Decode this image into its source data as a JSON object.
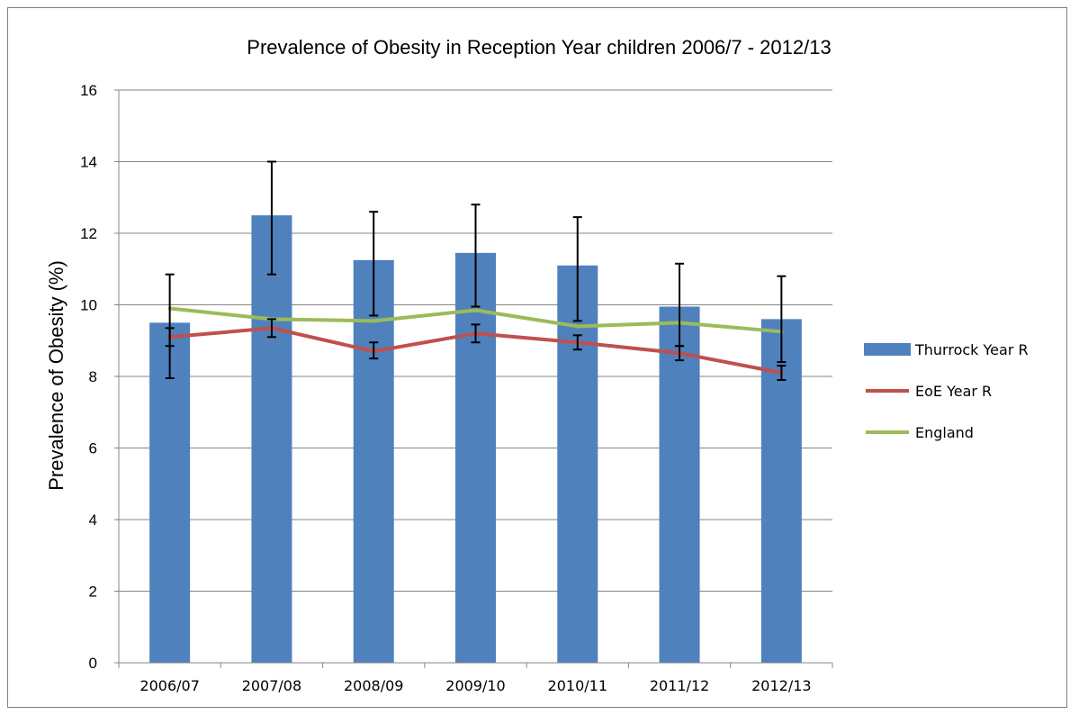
{
  "chart_data": {
    "type": "bar",
    "title": "Prevalence of Obesity in Reception Year children 2006/7 - 2012/13",
    "xlabel": "",
    "ylabel": "Prevalence of Obesity (%)",
    "ylim": [
      0,
      16
    ],
    "yticks": [
      0,
      2,
      4,
      6,
      8,
      10,
      12,
      14,
      16
    ],
    "grid": true,
    "legend_position": "right",
    "categories": [
      "2006/07",
      "2007/08",
      "2008/09",
      "2009/10",
      "2010/11",
      "2011/12",
      "2012/13"
    ],
    "series": [
      {
        "name": "Thurrock Year R",
        "kind": "bar",
        "color": "#4f81bd",
        "values": [
          9.5,
          12.5,
          11.25,
          11.45,
          11.1,
          9.95,
          9.6
        ],
        "error_low": [
          7.95,
          10.85,
          9.7,
          9.95,
          9.55,
          8.85,
          8.4
        ],
        "error_high": [
          10.85,
          14.0,
          12.6,
          12.8,
          12.45,
          11.15,
          10.8
        ]
      },
      {
        "name": "EoE Year R",
        "kind": "line",
        "color": "#c0504d",
        "values": [
          9.1,
          9.35,
          8.7,
          9.2,
          8.95,
          8.65,
          8.1
        ],
        "error_low": [
          8.85,
          9.1,
          8.5,
          8.95,
          8.75,
          8.45,
          7.9
        ],
        "error_high": [
          9.35,
          9.6,
          8.95,
          9.45,
          9.15,
          8.85,
          8.3
        ]
      },
      {
        "name": "England",
        "kind": "line",
        "color": "#9bbb59",
        "values": [
          9.9,
          9.6,
          9.55,
          9.85,
          9.4,
          9.5,
          9.25
        ]
      }
    ]
  }
}
